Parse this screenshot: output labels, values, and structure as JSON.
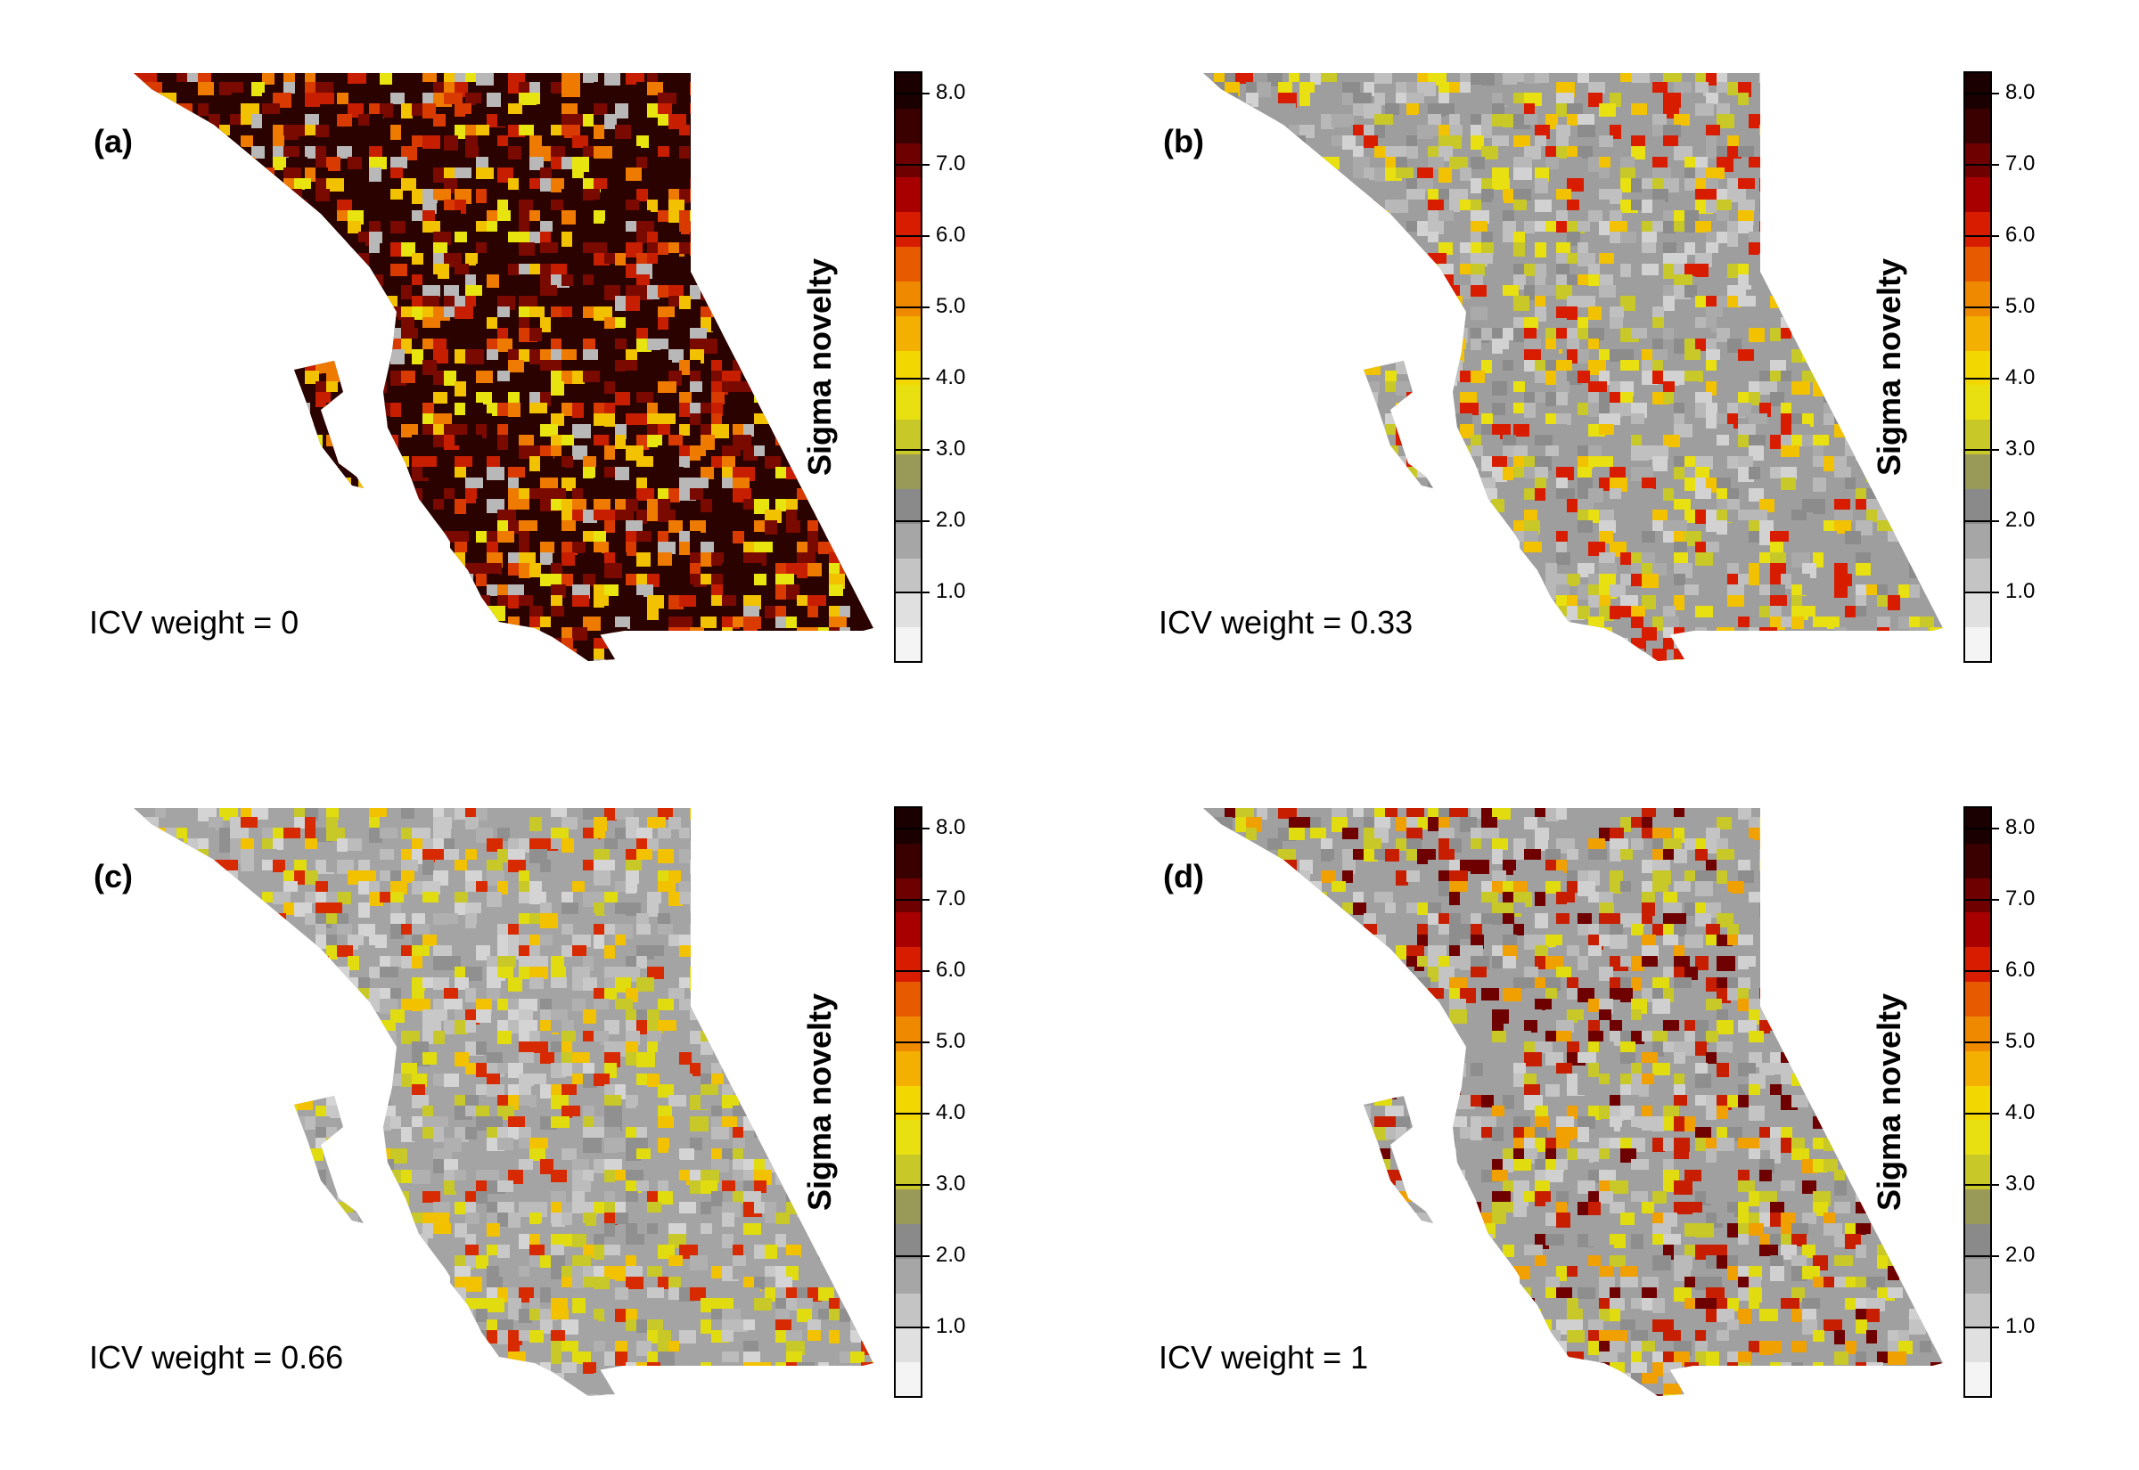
{
  "figure": {
    "colorbar_title": "Sigma novelty",
    "colorbar_ticks": [
      "1.0",
      "2.0",
      "3.0",
      "4.0",
      "5.0",
      "6.0",
      "7.0",
      "8.0"
    ],
    "colorbar_colors": [
      "#f4f4f4",
      "#e0e0e0",
      "#c4c4c4",
      "#a6a6a6",
      "#8a8a8a",
      "#999958",
      "#c8c828",
      "#e8e010",
      "#f2d800",
      "#f3b000",
      "#ef8a00",
      "#e85a00",
      "#d81c00",
      "#a80000",
      "#6e0000",
      "#3a0000",
      "#1a0000"
    ],
    "colorbar_max": 8.3
  },
  "panels": [
    {
      "letter": "(a)",
      "caption": "ICV weight = 0",
      "background_tone": "#2a0200",
      "land_palette": [
        "#2a0200",
        "#7a0a00",
        "#c81e00",
        "#ee7a00",
        "#f2c200",
        "#e8e410",
        "#b8b8b8",
        "#7a0a00",
        "#2a0200",
        "#d83a00"
      ]
    },
    {
      "letter": "(b)",
      "caption": "ICV weight = 0.33",
      "background_tone": "#9e9e9e",
      "land_palette": [
        "#9e9e9e",
        "#b8b8b8",
        "#d2d2d2",
        "#8c8c8c",
        "#c8c828",
        "#e8e010",
        "#aaaaaa",
        "#f2c200",
        "#c0c0c0",
        "#d81c00"
      ]
    },
    {
      "letter": "(c)",
      "caption": "ICV weight = 0.66",
      "background_tone": "#a4a4a4",
      "land_palette": [
        "#a4a4a4",
        "#bcbcbc",
        "#d4d4d4",
        "#909090",
        "#e0dc10",
        "#c8c828",
        "#b0b0b0",
        "#f2c200",
        "#c8c8c8",
        "#d82a00"
      ]
    },
    {
      "letter": "(d)",
      "caption": "ICV weight = 1",
      "background_tone": "#a0a0a0",
      "land_palette": [
        "#a0a0a0",
        "#bababa",
        "#d0d0d0",
        "#8e8e8e",
        "#e0dc10",
        "#c8c828",
        "#6e0000",
        "#f0a000",
        "#c4c4c4",
        "#c81e00"
      ]
    }
  ]
}
